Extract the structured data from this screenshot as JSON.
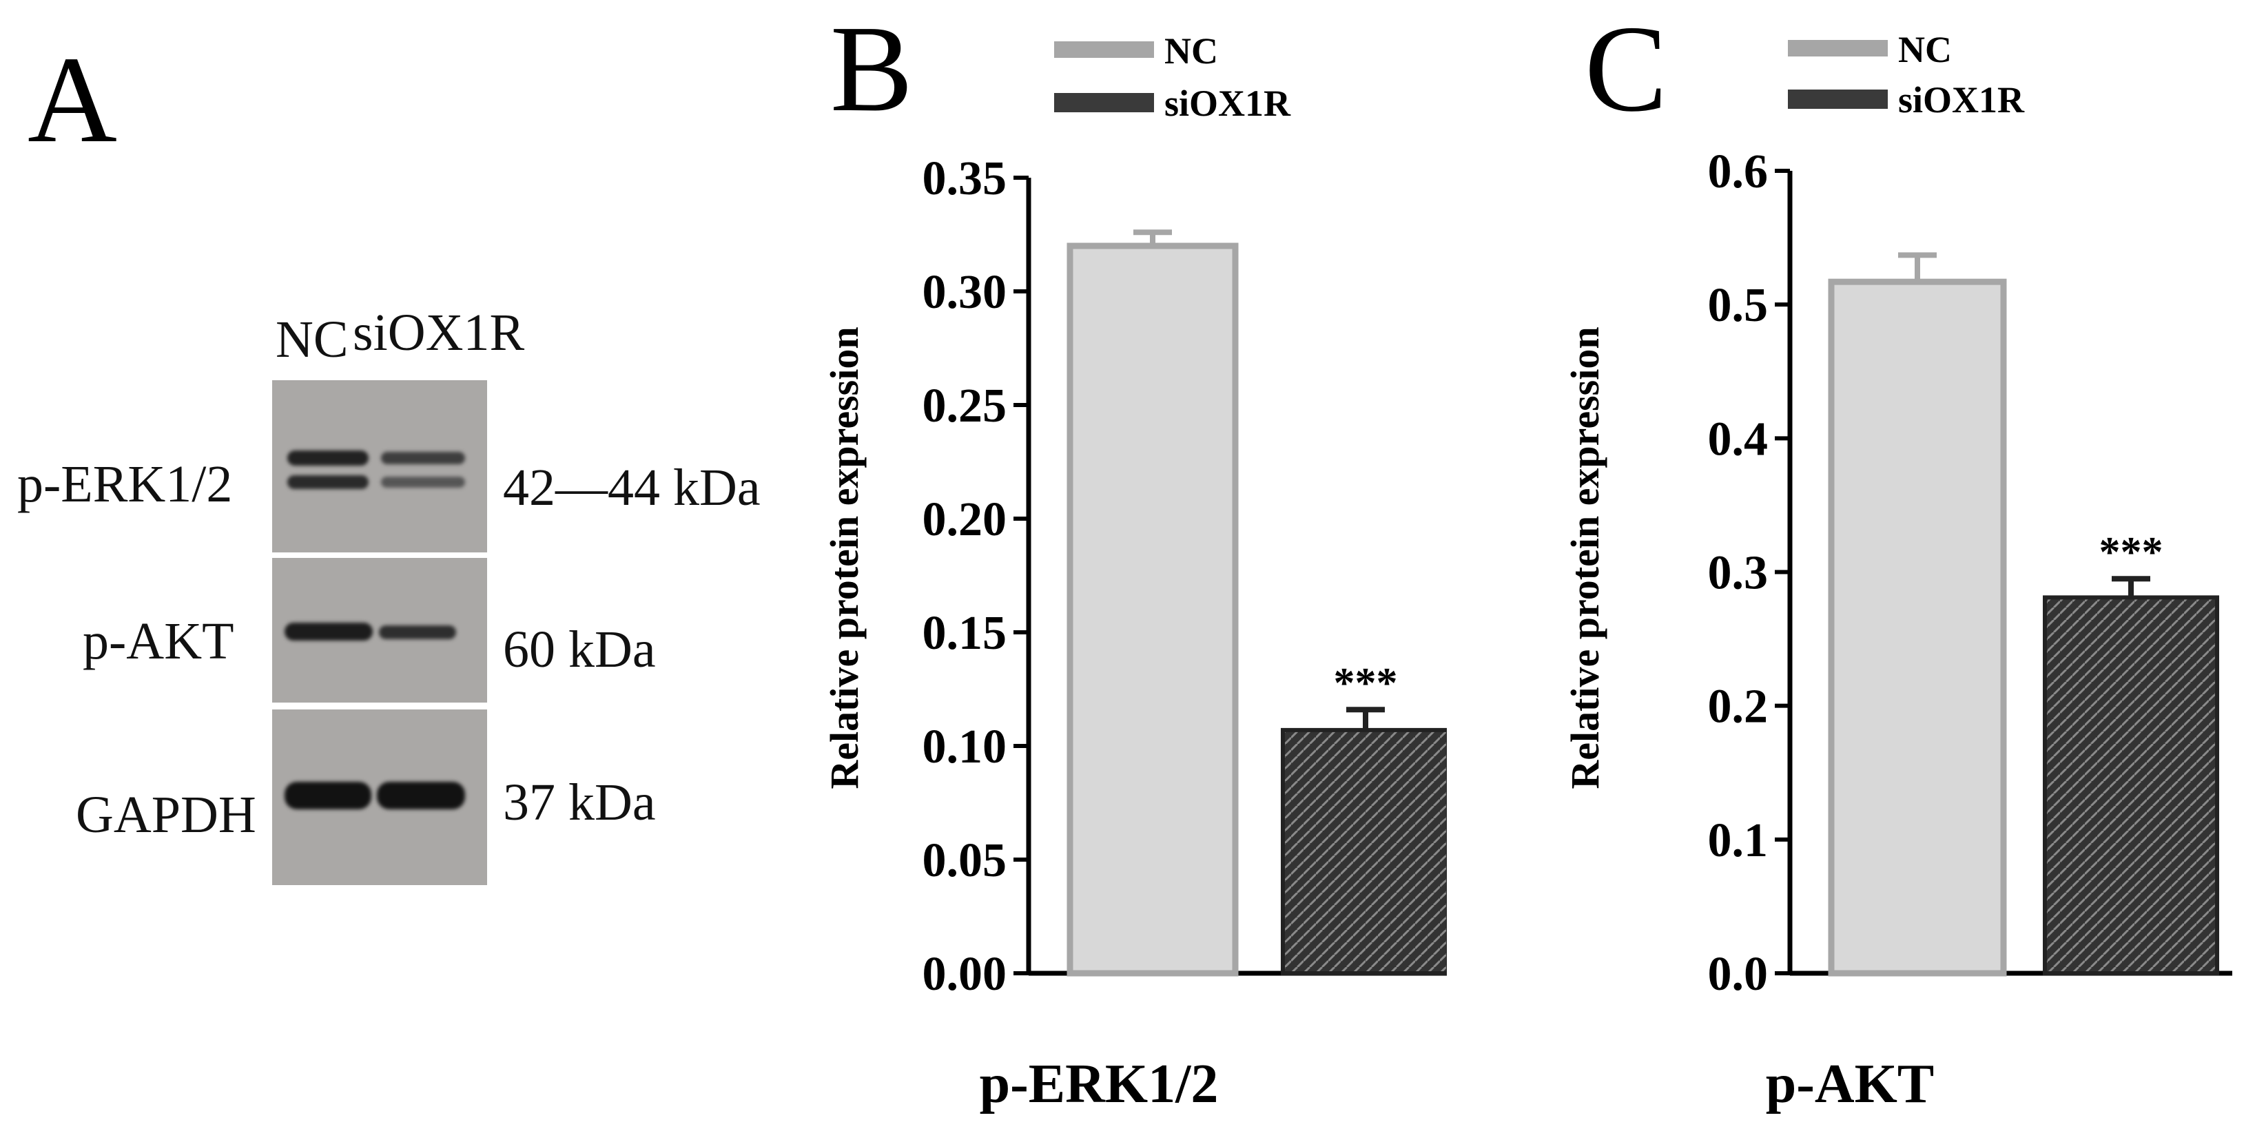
{
  "panel_a": {
    "letter": "A",
    "lanes": [
      "NC",
      "siOX1R"
    ],
    "rows": [
      {
        "protein": "p-ERK1/2",
        "size": "42—44 kDa",
        "band_intensity": [
          0.95,
          0.6
        ]
      },
      {
        "protein": "p-AKT",
        "size": "60 kDa",
        "band_intensity": [
          0.95,
          0.7
        ]
      },
      {
        "protein": "GAPDH",
        "size": "37 kDa",
        "band_intensity": [
          1.0,
          1.0
        ]
      }
    ]
  },
  "colors": {
    "nc_fill": "#d8d8d8",
    "nc_edge": "#a6a6a6",
    "si_fill": "#3a3a3a",
    "axis": "#000000"
  },
  "chart_data": [
    {
      "panel": "B",
      "type": "bar",
      "title": "",
      "xlabel": "p-ERK1/2",
      "ylabel": "Relative protein expression",
      "ylim": [
        0,
        0.35
      ],
      "yticks": [
        "0.00",
        "0.05",
        "0.10",
        "0.15",
        "0.20",
        "0.25",
        "0.30",
        "0.35"
      ],
      "categories": [
        "NC",
        "siOX1R"
      ],
      "legend": [
        "NC",
        "siOX1R"
      ],
      "values": [
        0.32,
        0.107
      ],
      "errors": [
        0.006,
        0.009
      ],
      "annotations": [
        "",
        "***"
      ]
    },
    {
      "panel": "C",
      "type": "bar",
      "title": "",
      "xlabel": "p-AKT",
      "ylabel": "Relative protein expression",
      "ylim": [
        0,
        0.6
      ],
      "yticks": [
        "0.0",
        "0.1",
        "0.2",
        "0.3",
        "0.4",
        "0.5",
        "0.6"
      ],
      "categories": [
        "NC",
        "siOX1R"
      ],
      "legend": [
        "NC",
        "siOX1R"
      ],
      "values": [
        0.517,
        0.281
      ],
      "errors": [
        0.02,
        0.014
      ],
      "annotations": [
        "",
        "***"
      ]
    }
  ]
}
